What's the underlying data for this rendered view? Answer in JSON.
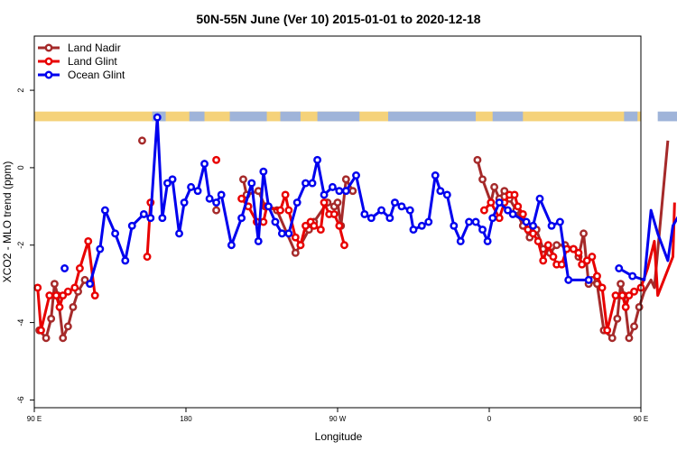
{
  "chart_data": {
    "type": "line",
    "title": "50N-55N June (Ver 10)   2015-01-01 to 2020-12-18",
    "xlabel": "Longitude",
    "ylabel": "XCO2 - MLO trend (ppm)",
    "xlim": [
      90,
      450
    ],
    "ylim": [
      -6.2,
      3.4
    ],
    "x_ticks": [
      {
        "value": 90,
        "label": "90 E"
      },
      {
        "value": 180,
        "label": "180"
      },
      {
        "value": 270,
        "label": "90 W"
      },
      {
        "value": 360,
        "label": "0"
      },
      {
        "value": 450,
        "label": "90 E"
      },
      {
        "value": 540,
        "label": "180"
      }
    ],
    "y_ticks": [
      2,
      0,
      -2,
      -4,
      -6
    ],
    "grid": false,
    "legend_position": "top-left",
    "land_ocean_band": {
      "y_low": 1.2,
      "y_high": 1.45,
      "land_color": "#f5d27a",
      "ocean_color": "#9fb4d9"
    },
    "series": [
      {
        "name": "Land Nadir",
        "color": "#a52a2a",
        "points": [
          [
            93,
            -4.2
          ],
          [
            97,
            -4.4
          ],
          [
            100,
            -3.9
          ],
          [
            102,
            -3.0
          ],
          [
            104,
            -3.3
          ],
          [
            107,
            -4.4
          ],
          [
            110,
            -4.1
          ],
          [
            113,
            -3.6
          ],
          [
            116,
            -3.2
          ],
          [
            120,
            -2.9
          ],
          [
            154,
            0.7
          ],
          [
            198,
            -1.1
          ],
          [
            214,
            -0.3
          ],
          [
            216,
            -0.7
          ],
          [
            223,
            -0.6
          ],
          [
            227,
            -1.0
          ],
          [
            234,
            -1.1
          ],
          [
            245,
            -2.2
          ],
          [
            248,
            -2.0
          ],
          [
            253,
            -1.6
          ],
          [
            256,
            -1.4
          ],
          [
            264,
            -0.9
          ],
          [
            268,
            -1.0
          ],
          [
            270,
            -0.9
          ],
          [
            272,
            -1.5
          ],
          [
            275,
            -0.3
          ],
          [
            279,
            -0.6
          ],
          [
            353,
            0.2
          ],
          [
            356,
            -0.3
          ],
          [
            361,
            -0.9
          ],
          [
            363,
            -0.5
          ],
          [
            366,
            -0.8
          ],
          [
            369,
            -0.6
          ],
          [
            372,
            -0.8
          ],
          [
            376,
            -1.1
          ],
          [
            380,
            -1.5
          ],
          [
            384,
            -1.8
          ],
          [
            388,
            -1.6
          ],
          [
            392,
            -2.1
          ],
          [
            396,
            -2.2
          ],
          [
            400,
            -2.0
          ],
          [
            405,
            -2.0
          ],
          [
            410,
            -2.1
          ],
          [
            413,
            -2.3
          ],
          [
            416,
            -1.7
          ],
          [
            419,
            -3.0
          ],
          [
            421,
            -2.9
          ],
          [
            424,
            -3.0
          ],
          [
            428,
            -4.2
          ],
          [
            433,
            -4.4
          ],
          [
            436,
            -3.9
          ],
          [
            438,
            -3.0
          ],
          [
            440,
            -3.3
          ],
          [
            443,
            -4.4
          ],
          [
            446,
            -4.1
          ],
          [
            449,
            -3.6
          ],
          [
            452,
            -3.2
          ],
          [
            456,
            -2.9
          ],
          [
            458,
            -3.1
          ],
          [
            466,
            0.7
          ]
        ]
      },
      {
        "name": "Land Glint",
        "color": "#e80000",
        "points": [
          [
            92,
            -3.1
          ],
          [
            94,
            -4.2
          ],
          [
            99,
            -3.3
          ],
          [
            103,
            -3.3
          ],
          [
            105,
            -3.6
          ],
          [
            107,
            -3.3
          ],
          [
            110,
            -3.2
          ],
          [
            114,
            -3.1
          ],
          [
            117,
            -2.6
          ],
          [
            122,
            -1.9
          ],
          [
            126,
            -3.3
          ],
          [
            157,
            -2.3
          ],
          [
            159,
            -0.9
          ],
          [
            198,
            0.2
          ],
          [
            213,
            -0.8
          ],
          [
            217,
            -1.0
          ],
          [
            222,
            -1.4
          ],
          [
            226,
            -1.4
          ],
          [
            228,
            -1.0
          ],
          [
            236,
            -1.1
          ],
          [
            239,
            -0.7
          ],
          [
            241,
            -1.1
          ],
          [
            245,
            -1.8
          ],
          [
            248,
            -2.0
          ],
          [
            251,
            -1.5
          ],
          [
            254,
            -1.4
          ],
          [
            256,
            -1.5
          ],
          [
            260,
            -1.6
          ],
          [
            262,
            -0.9
          ],
          [
            265,
            -1.2
          ],
          [
            268,
            -1.2
          ],
          [
            271,
            -1.5
          ],
          [
            274,
            -2.0
          ],
          [
            357,
            -1.1
          ],
          [
            361,
            -0.9
          ],
          [
            366,
            -1.3
          ],
          [
            369,
            -0.9
          ],
          [
            372,
            -0.7
          ],
          [
            375,
            -0.7
          ],
          [
            377,
            -1.0
          ],
          [
            380,
            -1.2
          ],
          [
            383,
            -1.6
          ],
          [
            386,
            -1.7
          ],
          [
            389,
            -1.9
          ],
          [
            392,
            -2.4
          ],
          [
            395,
            -2.0
          ],
          [
            398,
            -2.3
          ],
          [
            400,
            -2.5
          ],
          [
            403,
            -2.5
          ],
          [
            406,
            -2.1
          ],
          [
            410,
            -2.1
          ],
          [
            413,
            -2.2
          ],
          [
            415,
            -2.5
          ],
          [
            418,
            -2.4
          ],
          [
            421,
            -2.3
          ],
          [
            424,
            -2.8
          ],
          [
            427,
            -3.1
          ],
          [
            430,
            -4.2
          ],
          [
            435,
            -3.3
          ],
          [
            439,
            -3.3
          ],
          [
            441,
            -3.6
          ],
          [
            443,
            -3.3
          ],
          [
            446,
            -3.2
          ],
          [
            450,
            -3.1
          ],
          [
            454,
            -2.6
          ],
          [
            458,
            -1.9
          ],
          [
            460,
            -3.3
          ],
          [
            469,
            -2.3
          ],
          [
            470,
            -0.9
          ]
        ]
      },
      {
        "name": "Ocean Glint",
        "color": "#0000ee",
        "points": [
          [
            108,
            -2.6
          ],
          [
            123,
            -3.0
          ],
          [
            129,
            -2.1
          ],
          [
            132,
            -1.1
          ],
          [
            138,
            -1.7
          ],
          [
            144,
            -2.4
          ],
          [
            148,
            -1.5
          ],
          [
            155,
            -1.2
          ],
          [
            159,
            -1.3
          ],
          [
            163,
            1.3
          ],
          [
            166,
            -1.3
          ],
          [
            169,
            -0.4
          ],
          [
            172,
            -0.3
          ],
          [
            176,
            -1.7
          ],
          [
            179,
            -0.9
          ],
          [
            183,
            -0.5
          ],
          [
            187,
            -0.6
          ],
          [
            191,
            0.1
          ],
          [
            194,
            -0.8
          ],
          [
            198,
            -0.9
          ],
          [
            201,
            -0.7
          ],
          [
            207,
            -2.0
          ],
          [
            213,
            -1.3
          ],
          [
            219,
            -0.4
          ],
          [
            223,
            -1.9
          ],
          [
            226,
            -0.1
          ],
          [
            229,
            -1.0
          ],
          [
            233,
            -1.4
          ],
          [
            237,
            -1.7
          ],
          [
            241,
            -1.7
          ],
          [
            246,
            -0.9
          ],
          [
            251,
            -0.4
          ],
          [
            255,
            -0.4
          ],
          [
            258,
            0.2
          ],
          [
            262,
            -0.7
          ],
          [
            267,
            -0.5
          ],
          [
            271,
            -0.6
          ],
          [
            275,
            -0.6
          ],
          [
            281,
            -0.2
          ],
          [
            286,
            -1.2
          ],
          [
            290,
            -1.3
          ],
          [
            296,
            -1.1
          ],
          [
            301,
            -1.3
          ],
          [
            304,
            -0.9
          ],
          [
            308,
            -1.0
          ],
          [
            313,
            -1.1
          ],
          [
            315,
            -1.6
          ],
          [
            320,
            -1.5
          ],
          [
            324,
            -1.4
          ],
          [
            328,
            -0.2
          ],
          [
            331,
            -0.6
          ],
          [
            335,
            -0.7
          ],
          [
            339,
            -1.5
          ],
          [
            343,
            -1.9
          ],
          [
            348,
            -1.4
          ],
          [
            352,
            -1.4
          ],
          [
            356,
            -1.6
          ],
          [
            359,
            -1.9
          ],
          [
            362,
            -1.3
          ],
          [
            366,
            -0.9
          ],
          [
            371,
            -1.1
          ],
          [
            374,
            -1.2
          ],
          [
            382,
            -1.4
          ],
          [
            386,
            -1.5
          ],
          [
            390,
            -0.8
          ],
          [
            397,
            -1.5
          ],
          [
            402,
            -1.4
          ],
          [
            407,
            -2.9
          ],
          [
            419,
            -2.9
          ],
          [
            437,
            -2.6
          ],
          [
            445,
            -2.8
          ],
          [
            452,
            -2.9
          ],
          [
            456,
            -1.1
          ],
          [
            460,
            -1.7
          ],
          [
            466,
            -2.4
          ],
          [
            469,
            -1.5
          ],
          [
            473,
            -1.2
          ],
          [
            476,
            -1.3
          ],
          [
            480,
            1.3
          ]
        ]
      }
    ]
  }
}
